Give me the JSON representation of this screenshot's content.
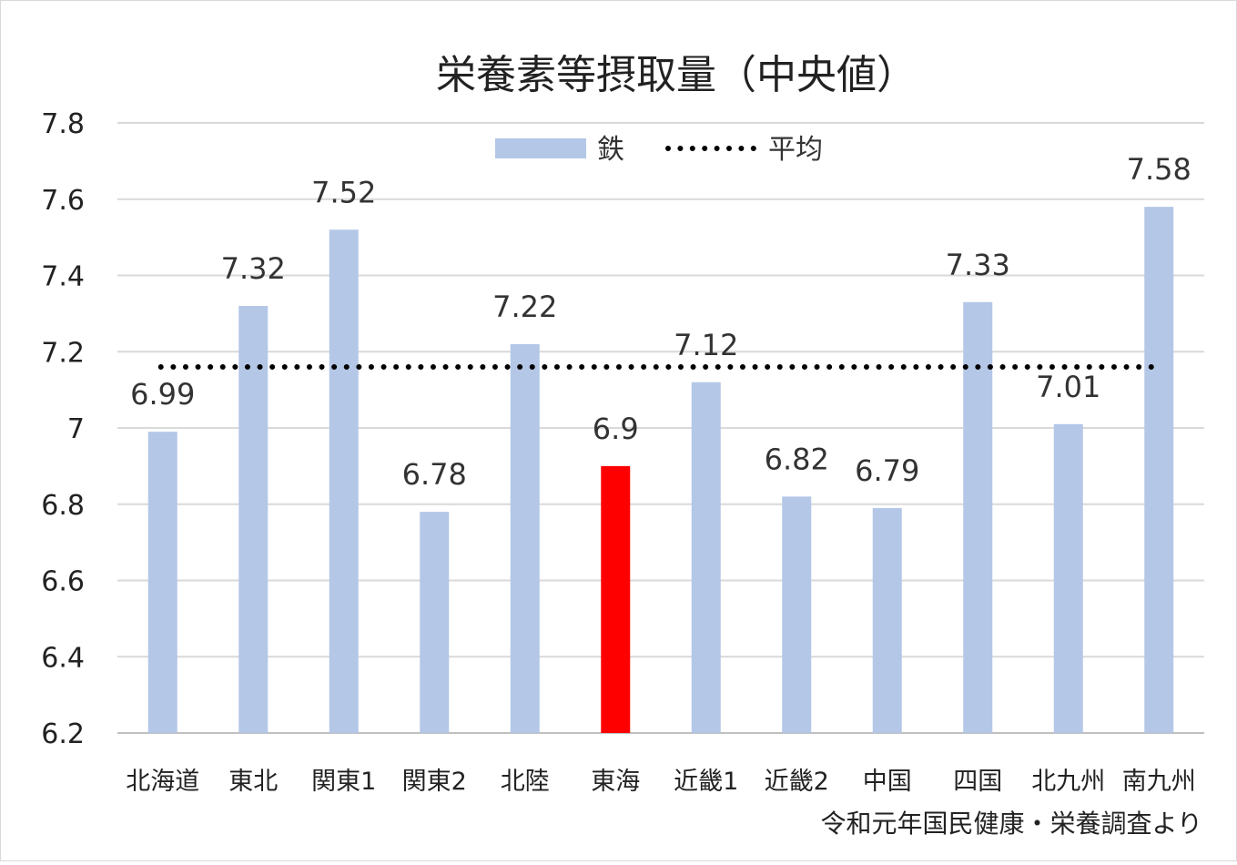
{
  "chart_data": {
    "type": "bar",
    "title": "栄養素等摂取量（中央値）",
    "categories": [
      "北海道",
      "東北",
      "関東1",
      "関東2",
      "北陸",
      "東海",
      "近畿1",
      "近畿2",
      "中国",
      "四国",
      "北九州",
      "南九州"
    ],
    "series": [
      {
        "name": "鉄",
        "values": [
          6.99,
          7.32,
          7.52,
          6.78,
          7.22,
          6.9,
          7.12,
          6.82,
          6.79,
          7.33,
          7.01,
          7.58
        ],
        "color": "#b4c7e7",
        "highlight_index": 5,
        "highlight_color": "#ff0000"
      }
    ],
    "average": {
      "name": "平均",
      "value": 7.16,
      "style": "dotted",
      "color": "#000000"
    },
    "ylim": [
      6.2,
      7.8
    ],
    "yticks": [
      "6.2",
      "6.4",
      "6.6",
      "6.8",
      "7",
      "7.2",
      "7.4",
      "7.6",
      "7.8"
    ],
    "grid": true,
    "legend_position": "top-center",
    "source_note": "令和元年国民健康・栄養調査より"
  }
}
